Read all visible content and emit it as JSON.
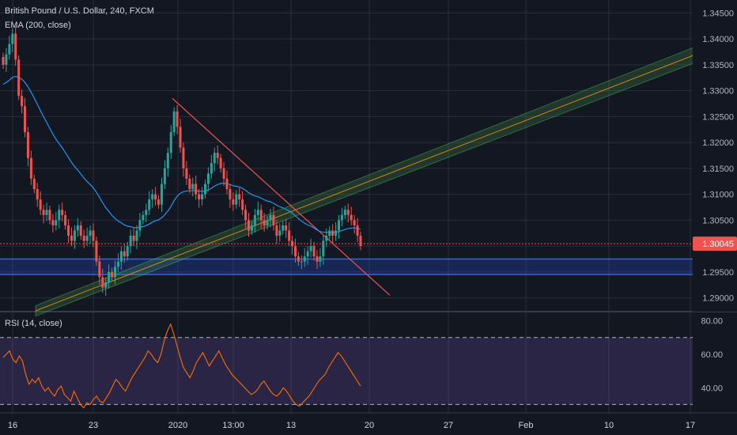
{
  "header": {
    "title": "British Pound / U.S. Dollar, 240, FXCM",
    "ema_label": "EMA (200, close)",
    "rsi_label": "RSI (14, close)"
  },
  "colors": {
    "background": "#131722",
    "grid": "#2a2e39",
    "up_candle": "#26a69a",
    "down_candle": "#ef5350",
    "ema_line": "#2196f3",
    "channel_fill": "#4caf50",
    "channel_mid": "#ff9800",
    "downtrend_line": "#ef5350",
    "support_zone": "#2962ff",
    "rsi_line": "#ff6d00",
    "rsi_band": "#7e57c2",
    "price_tag": "#ef5350"
  },
  "chart_data": [
    {
      "type": "candlestick",
      "title": "British Pound / U.S. Dollar, 240, FXCM",
      "indicator": "EMA (200, close)",
      "ylim": [
        1.2875,
        1.3475
      ],
      "y_ticks": [
        "1.34500",
        "1.34000",
        "1.33500",
        "1.33000",
        "1.32500",
        "1.32000",
        "1.31500",
        "1.31000",
        "1.30500",
        "1.30000",
        "1.29500",
        "1.29000"
      ],
      "x_ticks": [
        "16",
        "23",
        "2020",
        "13:00",
        "13",
        "20",
        "27",
        "Feb",
        "10",
        "17"
      ],
      "last_price": "1.30045",
      "close_series": [
        1.335,
        1.337,
        1.339,
        1.341,
        1.336,
        1.329,
        1.327,
        1.322,
        1.317,
        1.313,
        1.311,
        1.309,
        1.307,
        1.306,
        1.307,
        1.305,
        1.304,
        1.305,
        1.307,
        1.306,
        1.304,
        1.302,
        1.301,
        1.303,
        1.304,
        1.302,
        1.301,
        1.302,
        1.303,
        1.301,
        1.297,
        1.294,
        1.292,
        1.293,
        1.295,
        1.294,
        1.296,
        1.297,
        1.299,
        1.298,
        1.3,
        1.302,
        1.301,
        1.303,
        1.305,
        1.306,
        1.307,
        1.309,
        1.31,
        1.309,
        1.308,
        1.312,
        1.315,
        1.318,
        1.322,
        1.326,
        1.323,
        1.319,
        1.315,
        1.313,
        1.311,
        1.312,
        1.31,
        1.309,
        1.31,
        1.312,
        1.314,
        1.316,
        1.318,
        1.317,
        1.315,
        1.313,
        1.311,
        1.309,
        1.308,
        1.31,
        1.309,
        1.307,
        1.305,
        1.303,
        1.304,
        1.306,
        1.307,
        1.305,
        1.304,
        1.305,
        1.306,
        1.304,
        1.302,
        1.303,
        1.304,
        1.303,
        1.301,
        1.3,
        1.298,
        1.297,
        1.297,
        1.298,
        1.299,
        1.3,
        1.298,
        1.297,
        1.298,
        1.301,
        1.302,
        1.303,
        1.302,
        1.303,
        1.305,
        1.306,
        1.307,
        1.306,
        1.305,
        1.304,
        1.302,
        1.3
      ],
      "channel": {
        "lower_start": 1.2865,
        "lower_end": 1.3355,
        "upper_start": 1.2885,
        "upper_end": 1.3385
      },
      "support_zone": [
        1.2945,
        1.2975
      ]
    },
    {
      "type": "line",
      "title": "RSI (14, close)",
      "ylim": [
        25,
        85
      ],
      "y_ticks": [
        "80.00",
        "60.00",
        "40.00"
      ],
      "bands": [
        30,
        70
      ],
      "values": [
        58,
        60,
        62,
        57,
        55,
        59,
        56,
        48,
        42,
        45,
        43,
        46,
        41,
        38,
        40,
        37,
        35,
        39,
        41,
        36,
        34,
        32,
        38,
        34,
        30,
        28,
        31,
        30,
        33,
        35,
        32,
        31,
        34,
        37,
        41,
        45,
        43,
        40,
        38,
        42,
        46,
        49,
        52,
        55,
        58,
        62,
        60,
        57,
        55,
        60,
        68,
        74,
        78,
        72,
        65,
        58,
        52,
        49,
        46,
        50,
        55,
        58,
        61,
        57,
        53,
        56,
        59,
        62,
        58,
        54,
        51,
        48,
        46,
        44,
        42,
        40,
        38,
        36,
        37,
        39,
        42,
        44,
        41,
        38,
        36,
        35,
        37,
        40,
        38,
        35,
        32,
        30,
        29,
        31,
        33,
        35,
        38,
        41,
        44,
        46,
        48,
        52,
        55,
        58,
        61,
        59,
        56,
        53,
        50,
        47,
        44,
        41
      ]
    }
  ]
}
